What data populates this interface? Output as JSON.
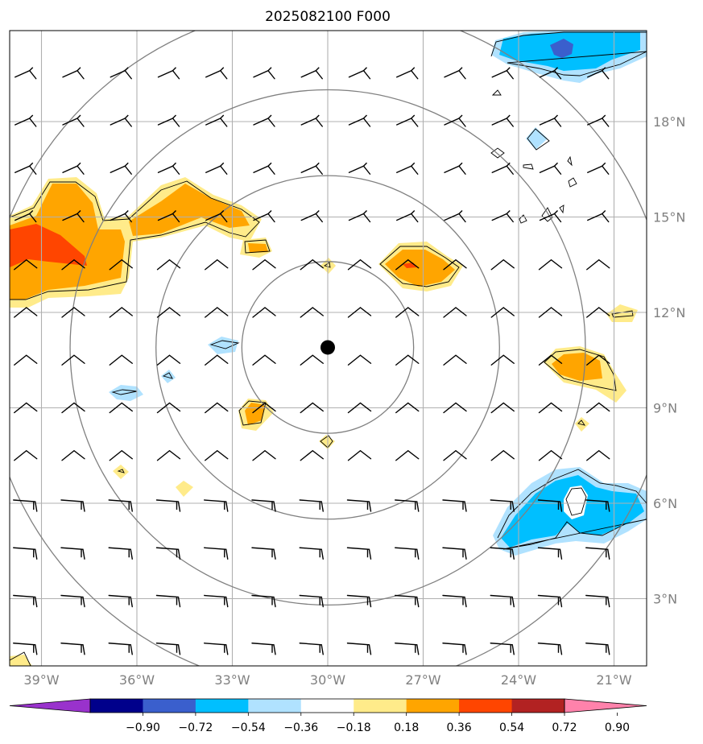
{
  "title": "2025082100 F000",
  "map": {
    "lon_range": [
      -40,
      -20.7
    ],
    "lat_range": [
      1.2,
      20.8
    ],
    "lon_ticks": [
      {
        "value": -39,
        "label": "39°W"
      },
      {
        "value": -36,
        "label": "36°W"
      },
      {
        "value": -33,
        "label": "33°W"
      },
      {
        "value": -30,
        "label": "30°W"
      },
      {
        "value": -27,
        "label": "27°W"
      },
      {
        "value": -24,
        "label": "24°W"
      },
      {
        "value": -21,
        "label": "21°W"
      }
    ],
    "lat_ticks": [
      {
        "value": 3,
        "label": "3°N"
      },
      {
        "value": 6,
        "label": "6°N"
      },
      {
        "value": 9,
        "label": "9°N"
      },
      {
        "value": 12,
        "label": "12°N"
      },
      {
        "value": 15,
        "label": "15°N"
      },
      {
        "value": 18,
        "label": "18°N"
      }
    ],
    "center": {
      "lon": -30,
      "lat": 10.9
    },
    "range_rings_deg": [
      2.7,
      5.4,
      8.1,
      10.8
    ],
    "grid_color": "#b0b0b0",
    "ring_color": "#808080",
    "tick_label_color": "#808080"
  },
  "colorbar": {
    "levels": [
      "-0.90",
      "-0.72",
      "-0.54",
      "-0.36",
      "-0.18",
      "0.18",
      "0.36",
      "0.54",
      "0.72",
      "0.90"
    ],
    "colors": [
      "#9932cc",
      "#00008b",
      "#3a5fcd",
      "#00bfff",
      "#b0e2ff",
      "#ffffff",
      "#ffeb8a",
      "#ffa500",
      "#ff4500",
      "#b22222",
      "#ff82ab"
    ],
    "extend": "both"
  },
  "field_colors": {
    "pos_light": "#ffeb8a",
    "pos_mid": "#ffa500",
    "pos_strong": "#ff4500",
    "neg_light": "#b0e2ff",
    "neg_mid": "#00bfff",
    "neg_strong": "#3a5fcd"
  },
  "wind_barbs": {
    "rows": [
      19.5,
      18,
      16.5,
      15,
      13.5,
      12,
      10.5,
      9,
      7.5,
      6,
      4.5,
      3,
      1.5
    ],
    "cols": [
      -39.5,
      -38,
      -36.5,
      -35,
      -33.5,
      -32,
      -30.5,
      -29,
      -27.5,
      -26,
      -24.5,
      -23,
      -21.5
    ]
  }
}
